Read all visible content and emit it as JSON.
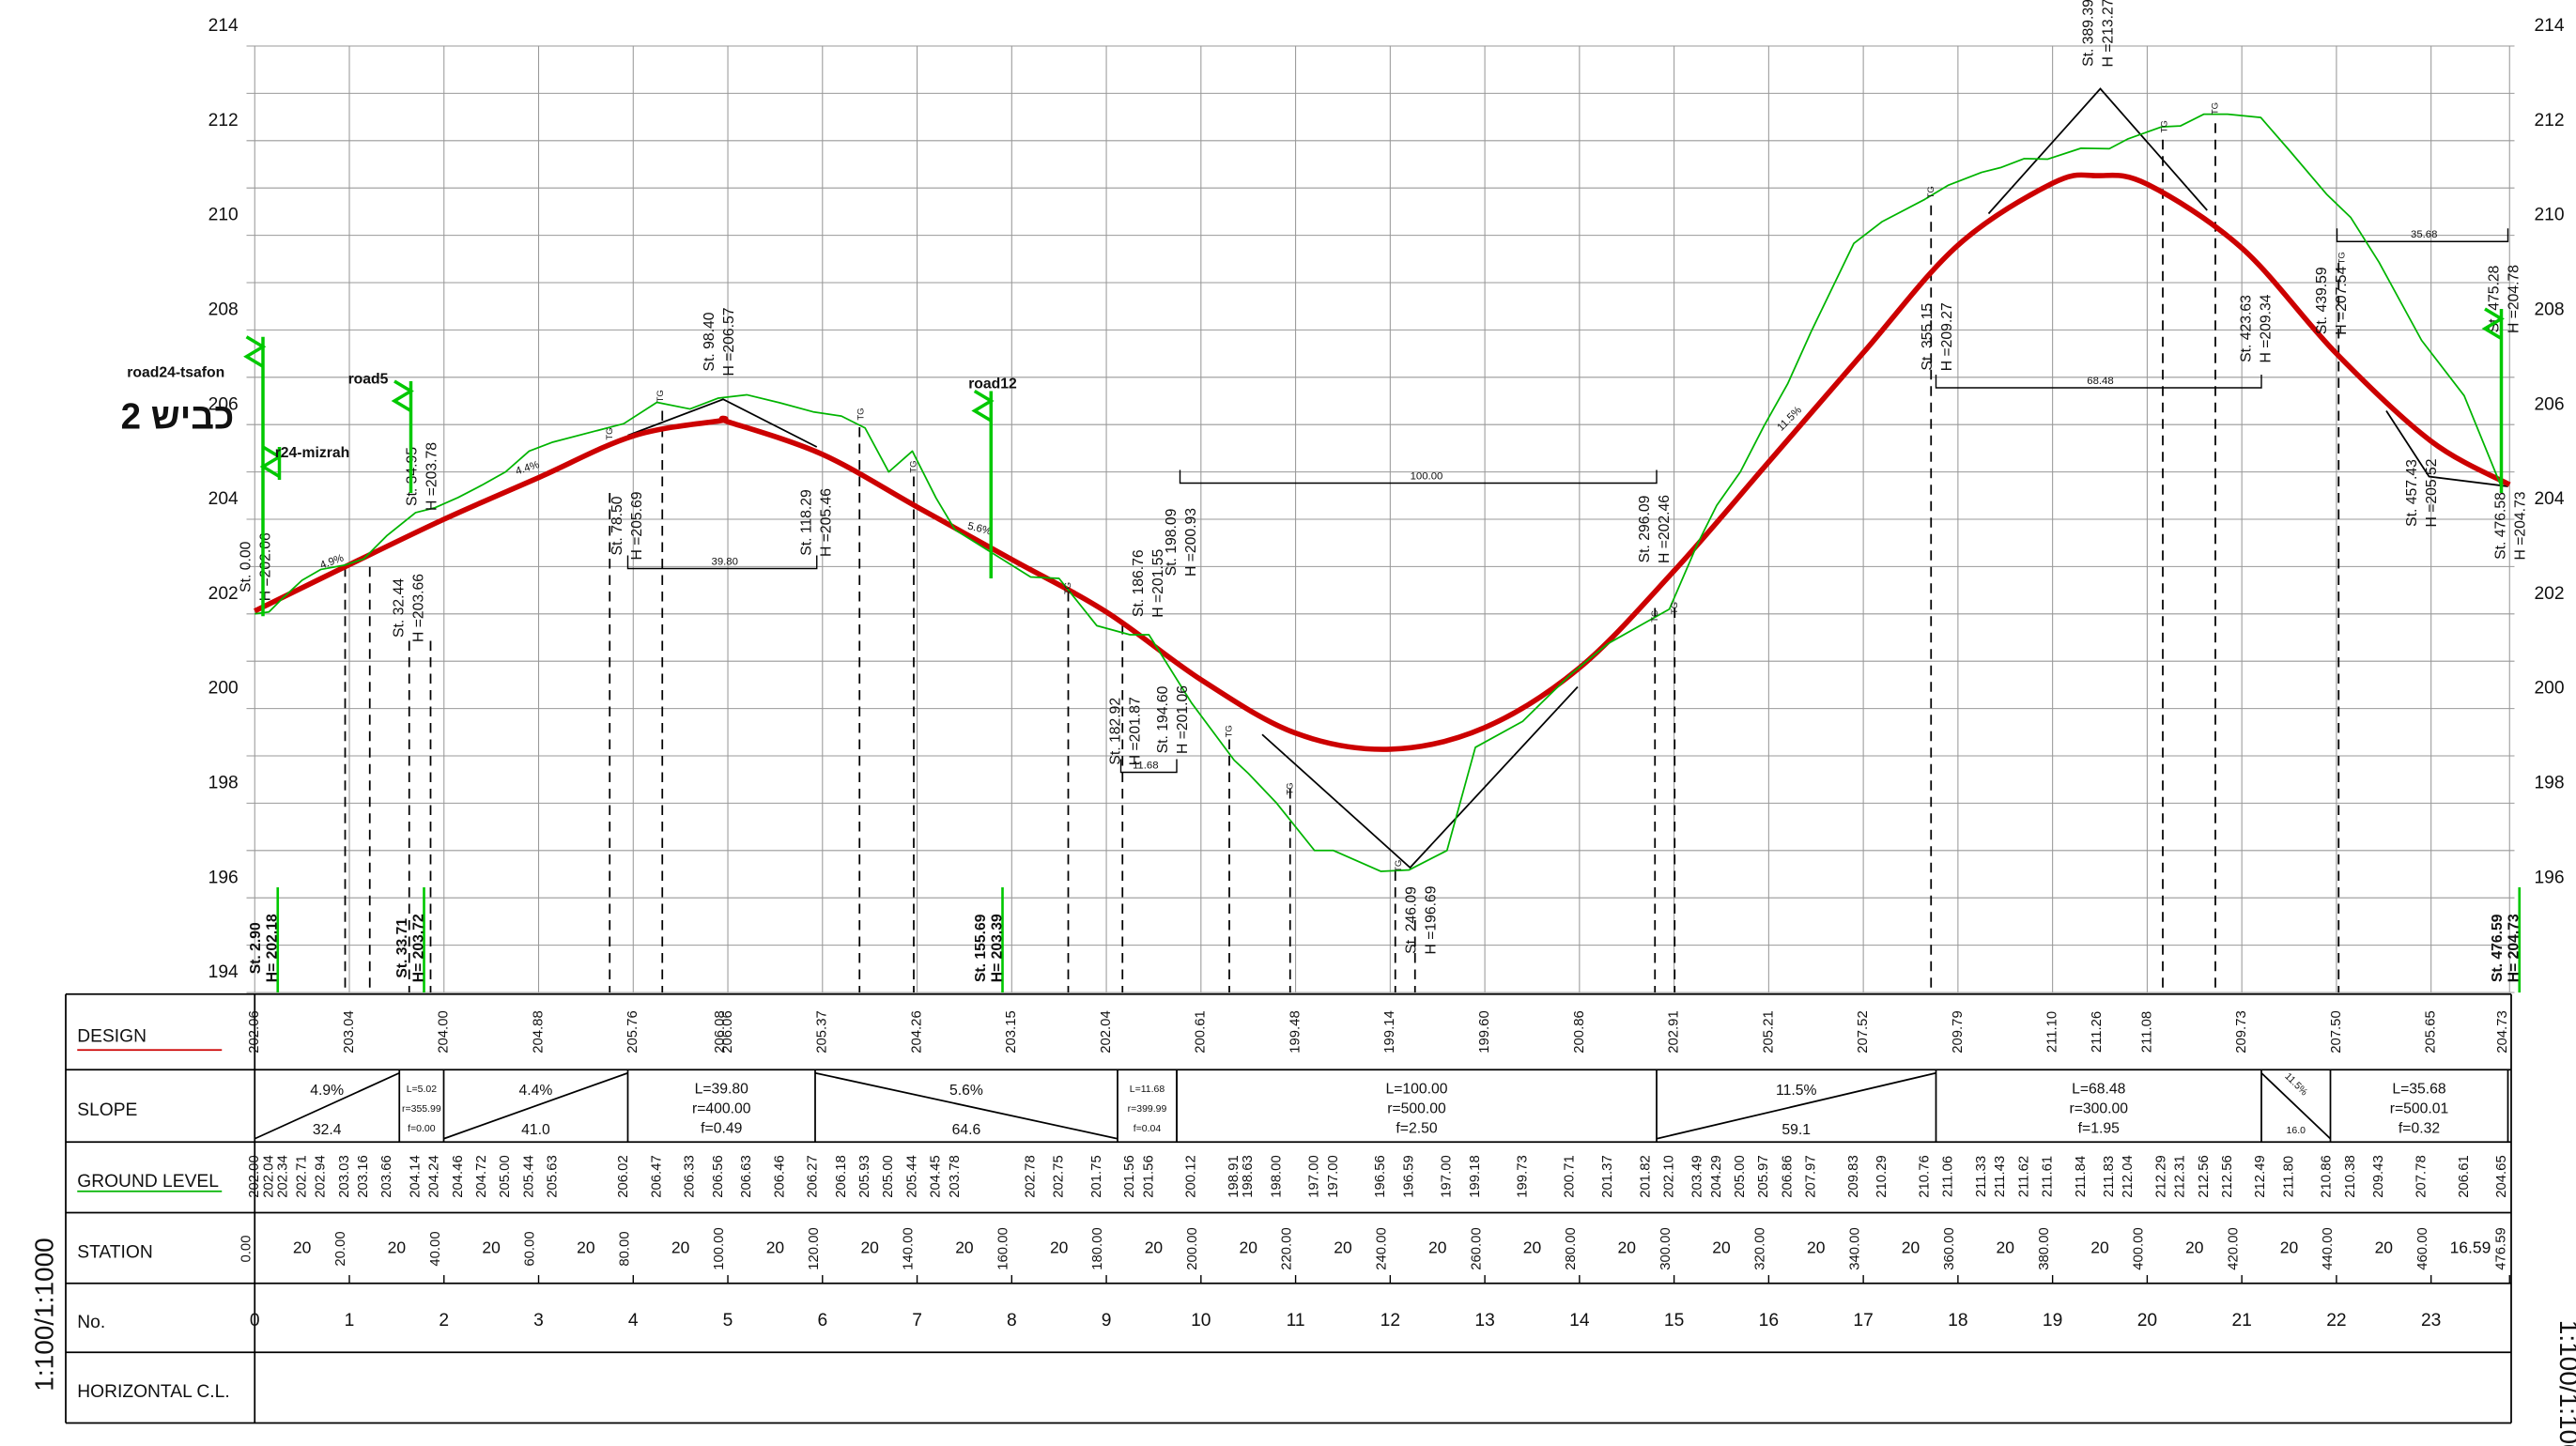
{
  "chart_data": {
    "type": "line",
    "title": "כביש 2",
    "scale_note": "1:100/1:1000",
    "xlim": [
      0,
      476.59
    ],
    "ylim": [
      194,
      214
    ],
    "grid": true,
    "yticks": [
      194,
      196,
      198,
      200,
      202,
      204,
      206,
      208,
      210,
      212,
      214
    ],
    "xticks": [
      {
        "value": 0,
        "label": "0.00"
      },
      {
        "value": 20,
        "label": "20.00"
      },
      {
        "value": 40,
        "label": "40.00"
      },
      {
        "value": 60,
        "label": "60.00"
      },
      {
        "value": 80,
        "label": "80.00"
      },
      {
        "value": 100,
        "label": "100.00"
      },
      {
        "value": 120,
        "label": "120.00"
      },
      {
        "value": 140,
        "label": "140.00"
      },
      {
        "value": 160,
        "label": "160.00"
      },
      {
        "value": 180,
        "label": "180.00"
      },
      {
        "value": 200,
        "label": "200.00"
      },
      {
        "value": 220,
        "label": "220.00"
      },
      {
        "value": 240,
        "label": "240.00"
      },
      {
        "value": 260,
        "label": "260.00"
      },
      {
        "value": 280,
        "label": "280.00"
      },
      {
        "value": 300,
        "label": "300.00"
      },
      {
        "value": 320,
        "label": "320.00"
      },
      {
        "value": 340,
        "label": "340.00"
      },
      {
        "value": 360,
        "label": "360.00"
      },
      {
        "value": 380,
        "label": "380.00"
      },
      {
        "value": 400,
        "label": "400.00"
      },
      {
        "value": 420,
        "label": "420.00"
      },
      {
        "value": 440,
        "label": "440.00"
      },
      {
        "value": 460,
        "label": "460.00"
      },
      476.59
    ],
    "series": [
      {
        "name": "DESIGN",
        "color": "#cc0000",
        "x": [
          0,
          20,
          40,
          60,
          80,
          98.4,
          100,
          120,
          140,
          160,
          180,
          200,
          220,
          240,
          260,
          280,
          300,
          320,
          340,
          360,
          380,
          389.39,
          400,
          420,
          440,
          460,
          476.59
        ],
        "values": [
          202.06,
          203.04,
          204,
          204.88,
          205.76,
          206.08,
          206.06,
          205.37,
          204.26,
          203.15,
          202.04,
          200.61,
          199.48,
          199.14,
          199.6,
          200.86,
          202.91,
          205.21,
          207.52,
          209.79,
          211.1,
          211.26,
          211.08,
          209.73,
          207.5,
          205.65,
          204.73
        ],
        "value_labels": [
          "202.06",
          "203.04",
          "204.00",
          "204.88",
          "205.76",
          "206.08",
          "206.06",
          "205.37",
          "204.26",
          "203.15",
          "202.04",
          "200.61",
          "199.48",
          "199.14",
          "199.60",
          "200.86",
          "202.91",
          "205.21",
          "207.52",
          "209.79",
          "211.10",
          "211.26",
          "211.08",
          "209.73",
          "207.50",
          "205.65",
          "204.73"
        ]
      },
      {
        "name": "GROUND LEVEL",
        "color": "#00b400",
        "x": [
          0,
          3,
          6,
          10,
          14,
          19,
          23,
          28,
          34,
          38,
          43,
          48,
          53,
          58,
          63,
          78,
          85,
          92,
          98,
          104,
          111,
          118,
          124,
          129,
          134,
          139,
          144,
          148,
          164,
          170,
          178,
          185,
          189,
          198,
          207,
          210,
          216,
          224,
          228,
          238,
          244,
          252,
          258,
          268,
          278,
          286,
          294,
          299,
          305,
          309,
          314,
          319,
          324,
          329,
          338,
          344,
          353,
          358,
          365,
          369,
          374,
          379,
          386,
          392,
          396,
          403,
          407,
          412,
          417,
          424,
          430,
          438,
          443,
          449,
          458,
          467,
          475
        ],
        "values": [
          202,
          202.04,
          202.34,
          202.71,
          202.94,
          203.03,
          203.16,
          203.66,
          204.14,
          204.24,
          204.46,
          204.72,
          205,
          205.44,
          205.63,
          206.02,
          206.47,
          206.33,
          206.56,
          206.63,
          206.46,
          206.27,
          206.18,
          205.93,
          205,
          205.44,
          204.45,
          203.78,
          202.78,
          202.75,
          201.75,
          201.56,
          201.56,
          200.12,
          198.91,
          198.63,
          198,
          197,
          197,
          196.56,
          196.59,
          197,
          199.18,
          199.73,
          200.71,
          201.37,
          201.82,
          202.1,
          203.49,
          204.29,
          205,
          205.97,
          206.86,
          207.97,
          209.83,
          210.29,
          210.76,
          211.06,
          211.33,
          211.43,
          211.62,
          211.61,
          211.84,
          211.83,
          212.04,
          212.29,
          212.31,
          212.56,
          212.56,
          212.49,
          211.8,
          210.86,
          210.38,
          209.43,
          207.78,
          206.61,
          204.65
        ],
        "value_labels": [
          "202.00",
          "202.04",
          "202.34",
          "202.71",
          "202.94",
          "203.03",
          "203.16",
          "203.66",
          "204.14",
          "204.24",
          "204.46",
          "204.72",
          "205.00",
          "205.44",
          "205.63",
          "206.02",
          "206.47",
          "206.33",
          "206.56",
          "206.63",
          "206.46",
          "206.27",
          "206.18",
          "205.93",
          "205.00",
          "205.44",
          "204.45",
          "203.78",
          "202.78",
          "202.75",
          "201.75",
          "201.56",
          "201.56",
          "200.12",
          "198.91",
          "198.63",
          "198.00",
          "197.00",
          "197.00",
          "196.56",
          "196.59",
          "197.00",
          "199.18",
          "199.73",
          "200.71",
          "201.37",
          "201.82",
          "202.10",
          "203.49",
          "204.29",
          "205.00",
          "205.97",
          "206.86",
          "207.97",
          "209.83",
          "210.29",
          "210.76",
          "211.06",
          "211.33",
          "211.43",
          "211.62",
          "211.61",
          "211.84",
          "211.83",
          "212.04",
          "212.29",
          "212.31",
          "212.56",
          "212.56",
          "212.49",
          "211.80",
          "210.86",
          "210.38",
          "209.43",
          "207.78",
          "206.61",
          "204.65"
        ]
      }
    ],
    "annotations": [
      {
        "station": "St. 0.00",
        "height": "H =202.06"
      },
      {
        "station": "St. 32.44",
        "height": "H =203.66"
      },
      {
        "station": "St. 34.95",
        "height": "H =203.78"
      },
      {
        "station": "St. 78.50",
        "height": "H =205.69"
      },
      {
        "station": "St. 98.40",
        "height": "H =206.57"
      },
      {
        "station": "St. 118.29",
        "height": "H =205.46"
      },
      {
        "station": "St. 182.92",
        "height": "H =201.87"
      },
      {
        "station": "St. 186.76",
        "height": "H =201.55"
      },
      {
        "station": "St. 194.60",
        "height": "H =201.06"
      },
      {
        "station": "St. 198.09",
        "height": "H =200.93"
      },
      {
        "station": "St. 246.09",
        "height": "H =196.69"
      },
      {
        "station": "St. 296.09",
        "height": "H =202.46"
      },
      {
        "station": "St. 355.15",
        "height": "H =209.27"
      },
      {
        "station": "St. 389.39",
        "height": "H =213.27"
      },
      {
        "station": "St. 423.63",
        "height": "H =209.34"
      },
      {
        "station": "St. 439.59",
        "height": "H =207.54"
      },
      {
        "station": "St. 457.43",
        "height": "H =205.52"
      },
      {
        "station": "St. 475.28",
        "height": "H =204.78"
      },
      {
        "station": "St. 476.58",
        "height": "H =204.73"
      }
    ],
    "marker_annotations": [
      {
        "station": "St. 2.90",
        "height": "H= 202.18"
      },
      {
        "station": "St. 33.71",
        "height": "H= 203.72"
      },
      {
        "station": "St. 155.69",
        "height": "H= 203.39"
      },
      {
        "station": "St. 476.59",
        "height": "H= 204.73"
      }
    ],
    "road_labels": [
      "road24-tsafon",
      "road5",
      "road12",
      "r24-mizrah"
    ],
    "chord_labels": [
      "39.80",
      "100.00",
      "68.48",
      "35.68",
      "11.68"
    ],
    "grade_labels": [
      "4.9%",
      "4.4%",
      "5.6%",
      "11.5%"
    ],
    "tg_label": "TG"
  },
  "table": {
    "slope_label": "SLOPE",
    "station_label": "STATION",
    "number_label": "No.",
    "hcl_label": "HORIZONTAL C.L.",
    "slope": [
      {
        "grade": "4.9%",
        "length": "32.4"
      },
      {
        "L": "L=5.02",
        "r": "r=355.99",
        "f": "f=0.00"
      },
      {
        "grade": "4.4%",
        "length": "41.0"
      },
      {
        "L": "L=39.80",
        "r": "r=400.00",
        "f": "f=0.49"
      },
      {
        "grade": "5.6%",
        "length": "64.6"
      },
      {
        "L": "L=11.68",
        "r": "r=399.99",
        "f": "f=0.04"
      },
      {
        "L": "L=100.00",
        "r": "r=500.00",
        "f": "f=2.50"
      },
      {
        "grade": "11.5%",
        "length": "59.1"
      },
      {
        "L": "L=68.48",
        "r": "r=300.00",
        "f": "f=1.95"
      },
      {
        "grade": "11.5%",
        "length": "16.0"
      },
      {
        "L": "L=35.68",
        "r": "r=500.01",
        "f": "f=0.32"
      }
    ],
    "station_intervals": [
      20,
      20,
      20,
      20,
      20,
      20,
      20,
      20,
      20,
      20,
      20,
      20,
      20,
      20,
      20,
      20,
      20,
      20,
      20,
      20,
      20,
      20,
      20,
      16.59
    ],
    "point_numbers": [
      0,
      1,
      2,
      3,
      4,
      5,
      6,
      7,
      8,
      9,
      10,
      11,
      12,
      13,
      14,
      15,
      16,
      17,
      18,
      19,
      20,
      21,
      22,
      23
    ]
  }
}
